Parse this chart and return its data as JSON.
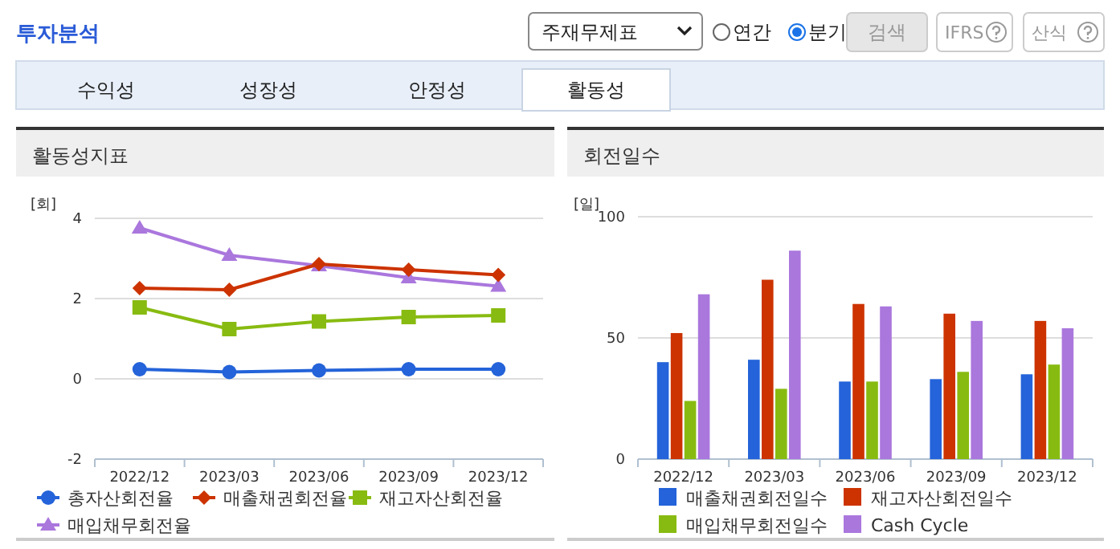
{
  "chart_data": [
    {
      "type": "other",
      "annotations": [
        "투자분석",
        "주재무제표",
        "연간",
        "분기",
        "검색",
        "IFRS",
        "산식",
        "수익성",
        "성장성",
        "안정성",
        "활동성"
      ]
    },
    {
      "type": "line",
      "title": "활동성지표",
      "ylabel": "[회]",
      "categories": [
        "2022/12",
        "2023/03",
        "2023/06",
        "2023/09",
        "2023/12"
      ],
      "ylim": [
        -2,
        4
      ],
      "yticks": [
        -2,
        0,
        2,
        4
      ],
      "grid": "y",
      "legend": "bottom",
      "series": [
        {
          "name": "총자산회전율",
          "color": "#2463d9",
          "marker": "circle",
          "values": [
            0.24,
            0.17,
            0.21,
            0.24,
            0.24
          ]
        },
        {
          "name": "매출채권회전율",
          "color": "#cc3300",
          "marker": "diamond",
          "values": [
            2.26,
            2.22,
            2.86,
            2.72,
            2.59
          ]
        },
        {
          "name": "재고자산회전율",
          "color": "#88bb11",
          "marker": "square",
          "values": [
            1.78,
            1.24,
            1.43,
            1.54,
            1.58
          ]
        },
        {
          "name": "매입채무회전율",
          "color": "#aa77dd",
          "marker": "triangle",
          "values": [
            3.76,
            3.08,
            2.82,
            2.52,
            2.31
          ]
        }
      ]
    },
    {
      "type": "bar",
      "title": "회전일수",
      "ylabel": "[일]",
      "categories": [
        "2022/12",
        "2023/03",
        "2023/06",
        "2023/09",
        "2023/12"
      ],
      "ylim": [
        0,
        100
      ],
      "yticks": [
        0,
        50,
        100
      ],
      "grid": "y",
      "legend": "bottom",
      "series": [
        {
          "name": "매출채권회전일수",
          "color": "#2463d9",
          "values": [
            40,
            41,
            32,
            33,
            35
          ]
        },
        {
          "name": "재고자산회전일수",
          "color": "#cc3300",
          "values": [
            52,
            74,
            64,
            60,
            57
          ]
        },
        {
          "name": "매입채무회전일수",
          "color": "#88bb11",
          "values": [
            24,
            29,
            32,
            36,
            39
          ]
        },
        {
          "name": "Cash Cycle",
          "color": "#aa77dd",
          "values": [
            68,
            86,
            63,
            57,
            54
          ]
        }
      ]
    }
  ]
}
